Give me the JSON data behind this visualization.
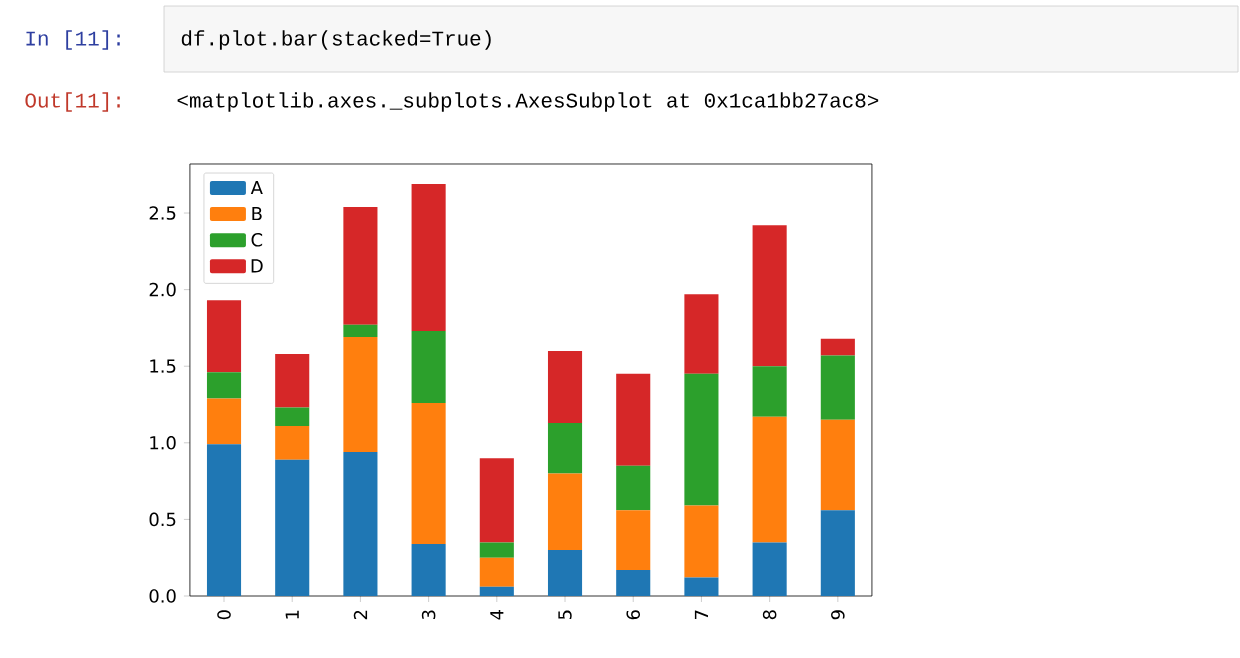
{
  "chart_data": {
    "type": "bar",
    "stacked": true,
    "categories": [
      "0",
      "1",
      "2",
      "3",
      "4",
      "5",
      "6",
      "7",
      "8",
      "9"
    ],
    "series": [
      {
        "name": "A",
        "color": "#1f77b4",
        "values": [
          0.99,
          0.89,
          0.94,
          0.34,
          0.06,
          0.3,
          0.17,
          0.12,
          0.35,
          0.56
        ]
      },
      {
        "name": "B",
        "color": "#ff7f0e",
        "values": [
          0.3,
          0.22,
          0.75,
          0.92,
          0.19,
          0.5,
          0.39,
          0.47,
          0.82,
          0.59
        ]
      },
      {
        "name": "C",
        "color": "#2ca02c",
        "values": [
          0.17,
          0.12,
          0.08,
          0.47,
          0.1,
          0.33,
          0.29,
          0.86,
          0.33,
          0.42
        ]
      },
      {
        "name": "D",
        "color": "#d62728",
        "values": [
          0.47,
          0.35,
          0.77,
          0.96,
          0.55,
          0.47,
          0.6,
          0.52,
          0.92,
          0.11
        ]
      }
    ],
    "ylim": [
      0,
      2.82
    ],
    "yticks": [
      {
        "value": 0,
        "label": "0.0"
      },
      0.5,
      {
        "value": 1,
        "label": "1.0"
      },
      1.5,
      {
        "value": 2,
        "label": "2.0"
      },
      2.5
    ],
    "legend": "top left",
    "grid": false,
    "annotations": [
      "In [11]:",
      "df.plot.bar(stacked=True)",
      "Out[11]:",
      "<matplotlib.axes._subplots.AxesSubplot at 0x1ca1bb27ac8>"
    ]
  }
}
